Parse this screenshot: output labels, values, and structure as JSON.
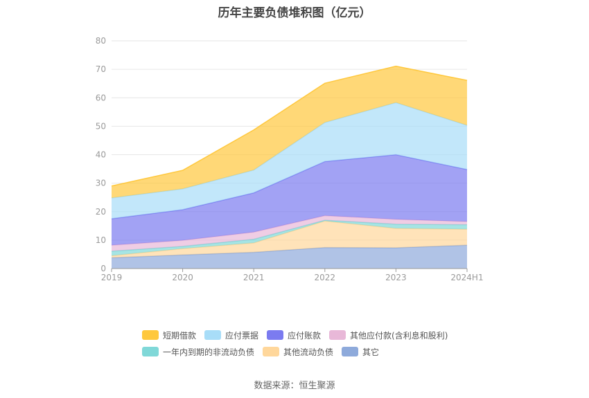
{
  "title": "历年主要负债堆积图（亿元）",
  "source": "数据来源：恒生聚源",
  "chart_data": {
    "type": "area",
    "stacked": true,
    "categories": [
      "2019",
      "2020",
      "2021",
      "2022",
      "2023",
      "2024H1"
    ],
    "ylim": [
      0,
      80
    ],
    "yticks": [
      0,
      10,
      20,
      30,
      40,
      50,
      60,
      70,
      80
    ],
    "grid": true,
    "legend_position": "bottom",
    "series": [
      {
        "name": "其它",
        "color": "#8EAADB",
        "values": [
          3.8,
          4.8,
          5.7,
          7.4,
          7.3,
          8.2
        ]
      },
      {
        "name": "其他流动负债",
        "color": "#FFD79B",
        "values": [
          0.7,
          2.2,
          3.3,
          9.3,
          6.8,
          5.6
        ]
      },
      {
        "name": "一年内到期的非流动负债",
        "color": "#80D8D8",
        "values": [
          1.6,
          0.8,
          1.3,
          0.3,
          1.5,
          1.6
        ]
      },
      {
        "name": "其他应付款(含利息和股利)",
        "color": "#E8B8D8",
        "values": [
          2.1,
          2.1,
          2.5,
          1.6,
          1.7,
          1.1
        ]
      },
      {
        "name": "应付账款",
        "color": "#7B7BF0",
        "values": [
          9.3,
          10.8,
          13.8,
          19.0,
          22.7,
          18.3
        ]
      },
      {
        "name": "应付票据",
        "color": "#A8DDF8",
        "values": [
          7.3,
          7.3,
          8.0,
          13.7,
          18.3,
          15.5
        ]
      },
      {
        "name": "短期借款",
        "color": "#FFC83D",
        "values": [
          4.2,
          6.5,
          14.1,
          13.8,
          12.8,
          15.8
        ]
      }
    ],
    "legend_rows": [
      [
        "短期借款",
        "应付票据",
        "应付账款",
        "其他应付款(含利息和股利)"
      ],
      [
        "一年内到期的非流动负债",
        "其他流动负债",
        "其它"
      ]
    ]
  }
}
